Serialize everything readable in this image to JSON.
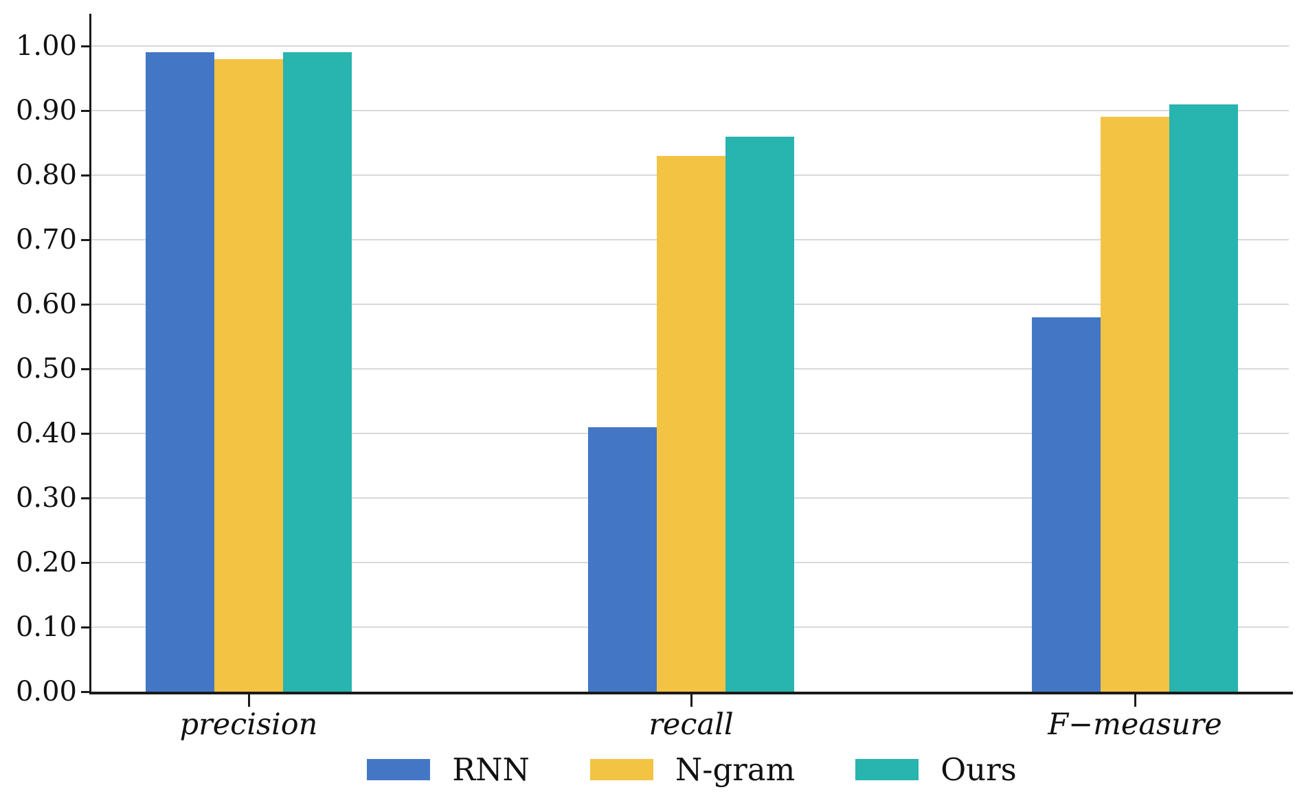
{
  "figure": {
    "background_color": "#ffffff",
    "axis_color": "#1a1a1a",
    "gridline_color": "#d9d9d9",
    "text_color": "#111111"
  },
  "chart_data": {
    "type": "bar",
    "title": "",
    "xlabel": "",
    "ylabel": "",
    "categories": [
      "precision",
      "recall",
      "F−measure"
    ],
    "series": [
      {
        "name": "RNN",
        "color": "#4377C6",
        "values": [
          0.99,
          0.41,
          0.58
        ]
      },
      {
        "name": "N-gram",
        "color": "#F3C344",
        "values": [
          0.98,
          0.83,
          0.89
        ]
      },
      {
        "name": "Ours",
        "color": "#28B4AF",
        "values": [
          0.99,
          0.86,
          0.91
        ]
      }
    ],
    "ylim": [
      0.0,
      1.05
    ],
    "yticks": [
      0.0,
      0.1,
      0.2,
      0.3,
      0.4,
      0.5,
      0.6,
      0.7,
      0.8,
      0.9,
      1.0
    ],
    "ytick_labels": [
      "0.00",
      "0.10",
      "0.20",
      "0.30",
      "0.40",
      "0.50",
      "0.60",
      "0.70",
      "0.80",
      "0.90",
      "1.00"
    ],
    "grid": "horizontal",
    "legend_position": "bottom-center"
  }
}
